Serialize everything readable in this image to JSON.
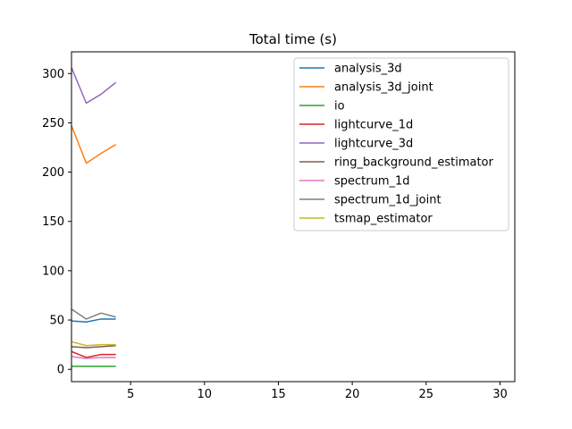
{
  "chart_data": {
    "type": "line",
    "title": "Total time (s)",
    "xlabel": "",
    "ylabel": "",
    "xlim": [
      1,
      31
    ],
    "ylim": [
      -12.5,
      322
    ],
    "xticks": [
      5,
      10,
      15,
      20,
      25,
      30
    ],
    "yticks": [
      0,
      50,
      100,
      150,
      200,
      250,
      300
    ],
    "grid": false,
    "legend_position": "top-right",
    "x": [
      1,
      2,
      3,
      4
    ],
    "series": [
      {
        "name": "analysis_3d",
        "color": "#1f77b4",
        "values": [
          49,
          48,
          51,
          51
        ]
      },
      {
        "name": "analysis_3d_joint",
        "color": "#ff7f0e",
        "values": [
          247,
          209,
          219,
          228
        ]
      },
      {
        "name": "io",
        "color": "#2ca02c",
        "values": [
          3,
          3,
          3,
          3
        ]
      },
      {
        "name": "lightcurve_1d",
        "color": "#d62728",
        "values": [
          18,
          12,
          15,
          15
        ]
      },
      {
        "name": "lightcurve_3d",
        "color": "#9467bd",
        "values": [
          306,
          270,
          279,
          291
        ]
      },
      {
        "name": "ring_background_estimator",
        "color": "#8c564b",
        "values": [
          23,
          22,
          23,
          24
        ]
      },
      {
        "name": "spectrum_1d",
        "color": "#e377c2",
        "values": [
          13,
          11,
          12,
          12
        ]
      },
      {
        "name": "spectrum_1d_joint",
        "color": "#7f7f7f",
        "values": [
          61,
          51,
          57,
          53
        ]
      },
      {
        "name": "tsmap_estimator",
        "color": "#bcbd22",
        "values": [
          28,
          24,
          25,
          25
        ]
      }
    ]
  }
}
